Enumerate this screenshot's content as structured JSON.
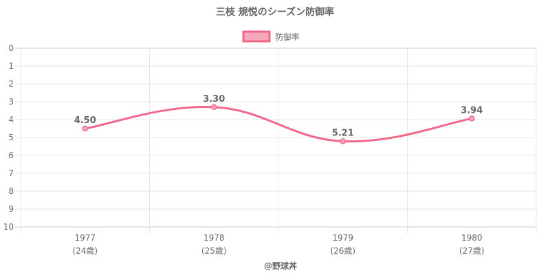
{
  "chart_data": {
    "type": "line",
    "title": "三枝 規悦のシーズン防御率",
    "categories": [
      "1977",
      "1978",
      "1979",
      "1980"
    ],
    "category_sublabels": [
      "(24歳)",
      "(25歳)",
      "(26歳)",
      "(27歳)"
    ],
    "series": [
      {
        "name": "防御率",
        "values": [
          4.5,
          3.3,
          5.21,
          3.94
        ],
        "labels": [
          "4.50",
          "3.30",
          "5.21",
          "3.94"
        ]
      }
    ],
    "ylim": [
      0,
      10
    ],
    "y_reversed": true,
    "y_ticks": [
      "0",
      "1",
      "2",
      "3",
      "4",
      "5",
      "6",
      "7",
      "8",
      "9",
      "10"
    ],
    "grid": true,
    "legend_position": "top",
    "line_color": "#f0678a",
    "fill_color": "#f7a8bb"
  },
  "footer": "@野球丼"
}
